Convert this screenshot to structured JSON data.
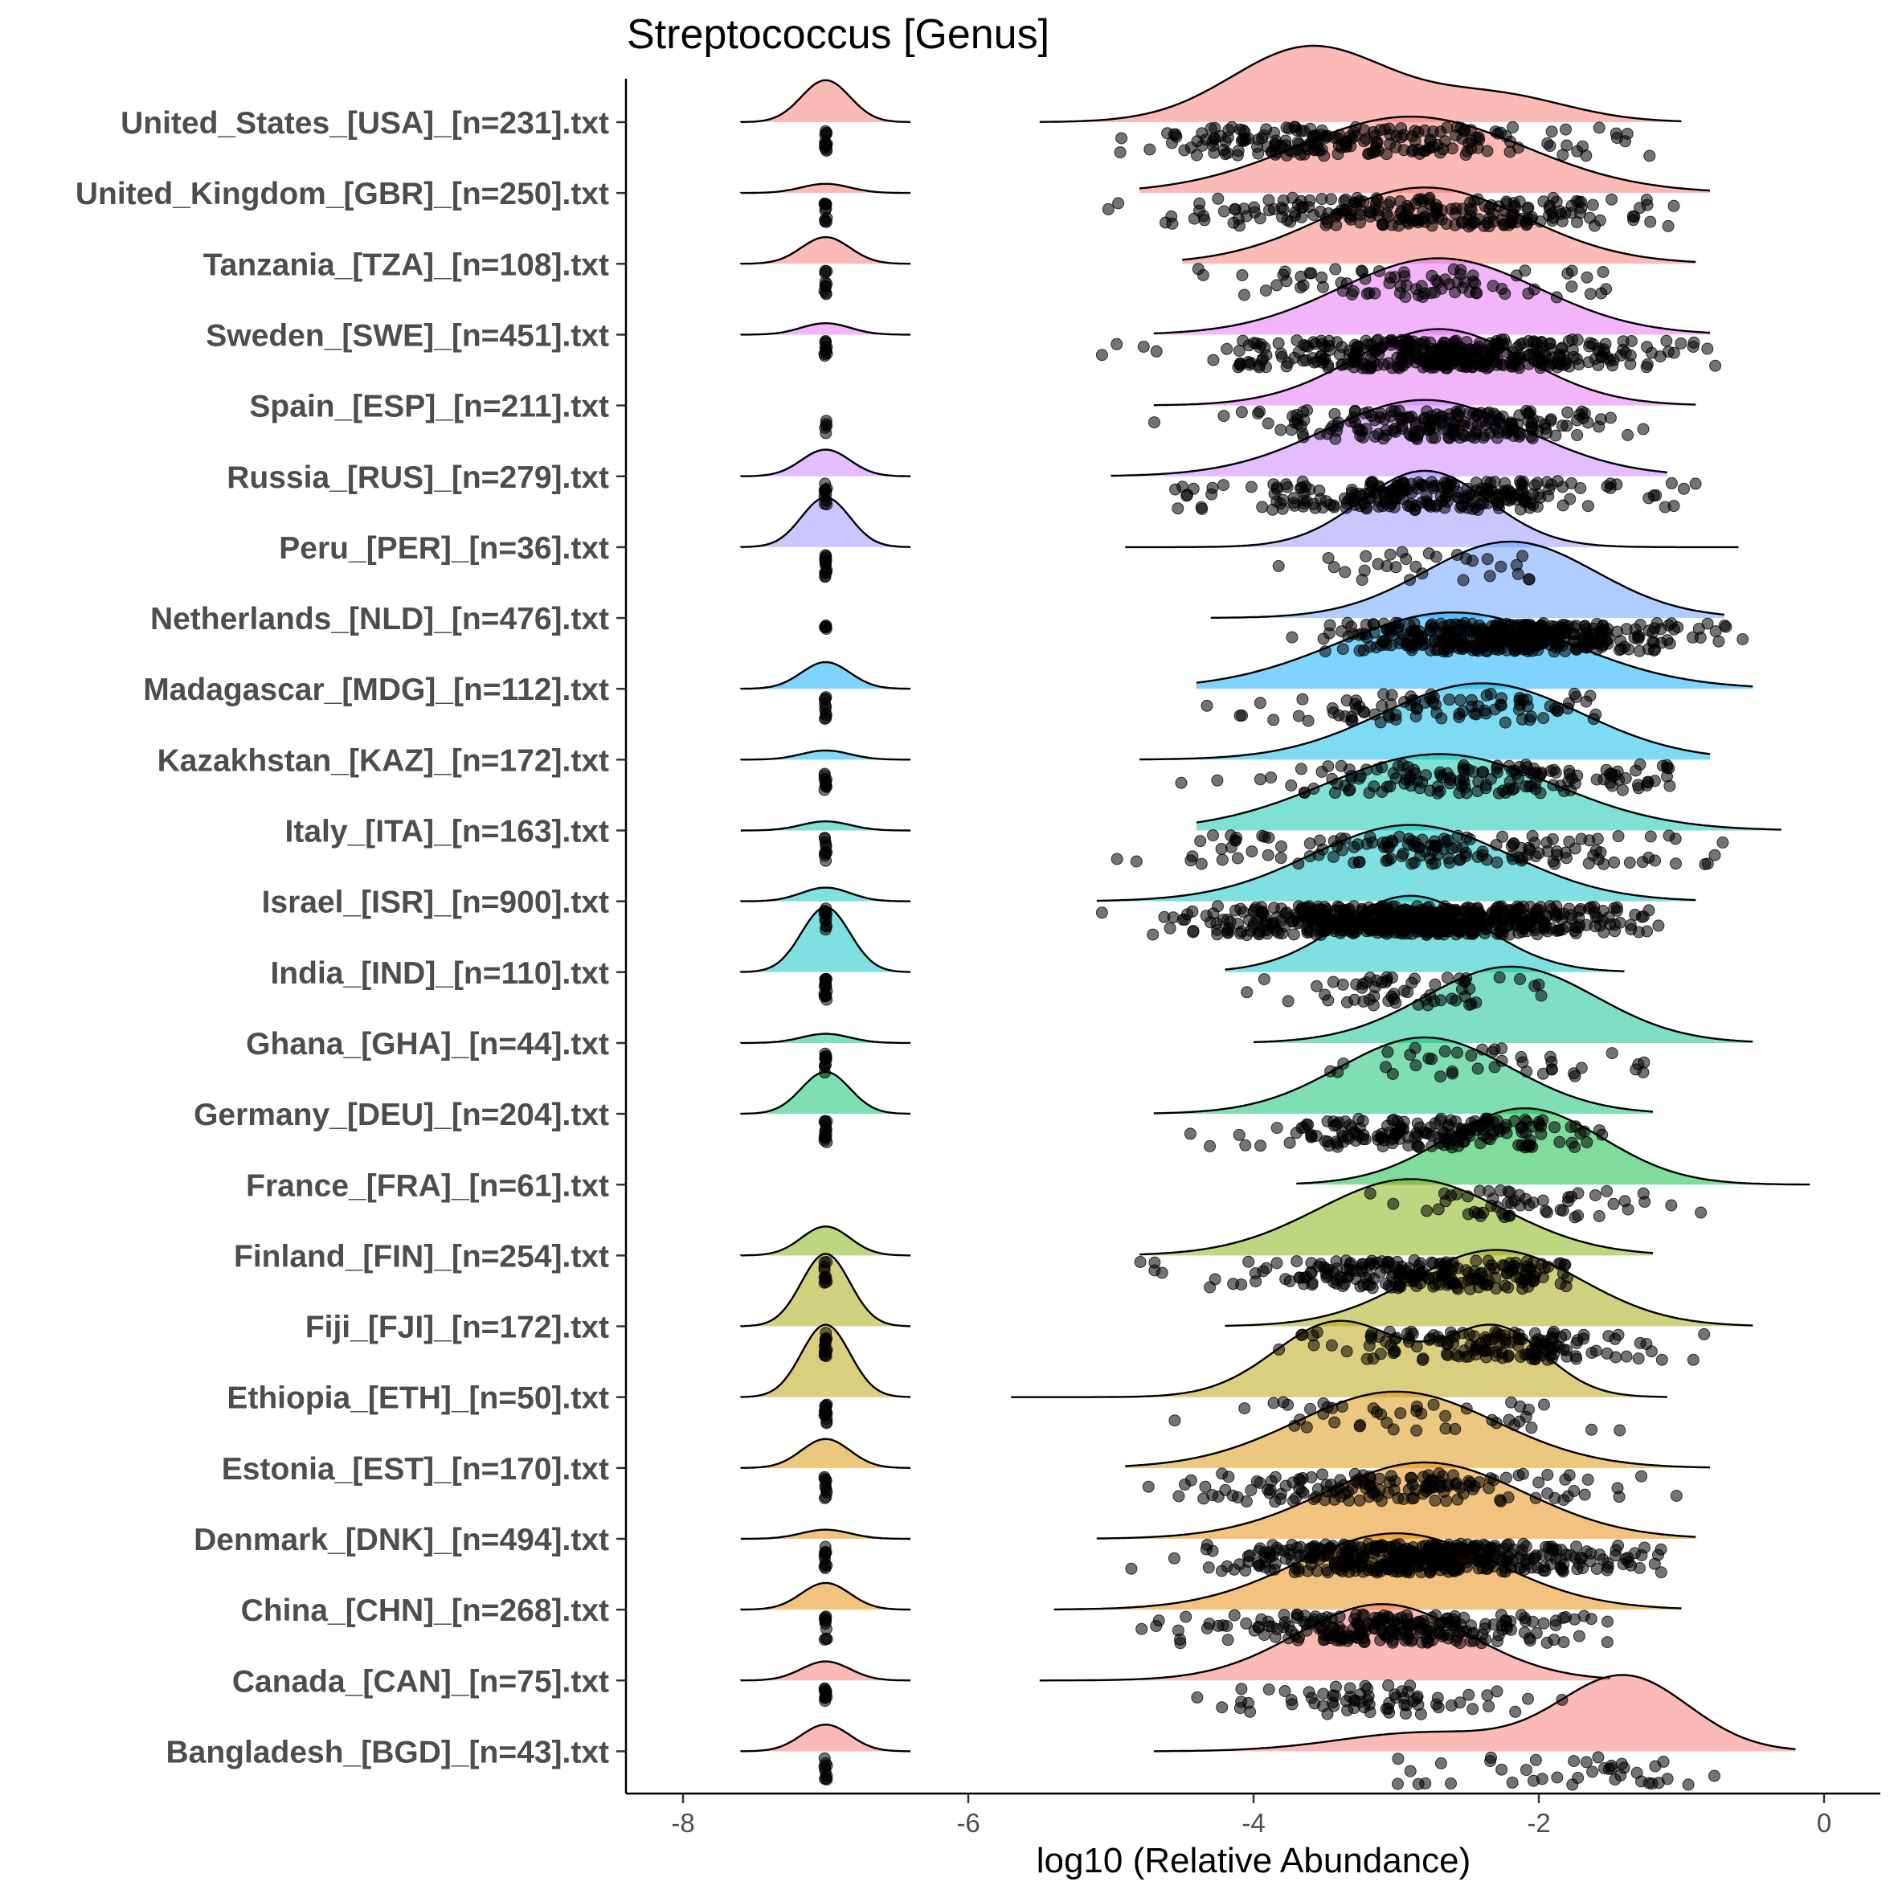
{
  "chart_data": {
    "type": "raincloud",
    "title": "Streptococcus [Genus]",
    "xlabel": "log10 (Relative Abundance)",
    "ylabel": "",
    "xlim": [
      -8.4,
      0.4
    ],
    "xticks": [
      -8,
      -6,
      -4,
      -2,
      0
    ],
    "zero_value": -7,
    "grid": false,
    "categories": [
      {
        "label": "United_States_[USA]_[n=231].txt",
        "color": "#F8766D",
        "zero_scale": 0.55,
        "zero_sd": 0.17,
        "nonzero": [
          [
            -3.6,
            0.55,
            1.0
          ],
          [
            -2.3,
            0.5,
            0.35
          ]
        ],
        "xmin": -5.5,
        "xmax": -1.0,
        "range": [
          -5.8,
          0.0
        ],
        "n_points": 200
      },
      {
        "label": "United_Kingdom_[GBR]_[n=250].txt",
        "color": "#F8766D",
        "zero_scale": 0.12,
        "zero_sd": 0.17,
        "nonzero": [
          [
            -2.9,
            0.8,
            1.0
          ]
        ],
        "xmin": -4.8,
        "xmax": -0.8,
        "range": [
          -5.4,
          -1.0
        ],
        "n_points": 220
      },
      {
        "label": "Tanzania_[TZA]_[n=108].txt",
        "color": "#F8766D",
        "zero_scale": 0.35,
        "zero_sd": 0.17,
        "nonzero": [
          [
            -2.8,
            0.7,
            1.0
          ]
        ],
        "xmin": -4.5,
        "xmax": -0.9,
        "range": [
          -4.6,
          -1.4
        ],
        "n_points": 80
      },
      {
        "label": "Sweden_[SWE]_[n=451].txt",
        "color": "#E76BF3",
        "zero_scale": 0.15,
        "zero_sd": 0.17,
        "nonzero": [
          [
            -2.7,
            0.7,
            1.0
          ]
        ],
        "xmin": -4.7,
        "xmax": -0.8,
        "range": [
          -5.6,
          -0.3
        ],
        "n_points": 380
      },
      {
        "label": "Spain_[ESP]_[n=211].txt",
        "color": "#E76BF3",
        "zero_scale": 0.0,
        "zero_sd": 0.17,
        "nonzero": [
          [
            -2.7,
            0.6,
            1.0
          ]
        ],
        "xmin": -4.7,
        "xmax": -0.9,
        "range": [
          -5.5,
          -1.2
        ],
        "n_points": 200
      },
      {
        "label": "Russia_[RUS]_[n=279].txt",
        "color": "#C77CFF",
        "zero_scale": 0.35,
        "zero_sd": 0.17,
        "nonzero": [
          [
            -2.8,
            0.7,
            1.0
          ]
        ],
        "xmin": -5.0,
        "xmax": -1.1,
        "range": [
          -5.0,
          -0.9
        ],
        "n_points": 240
      },
      {
        "label": "Peru_[PER]_[n=36].txt",
        "color": "#9590FF",
        "zero_scale": 0.65,
        "zero_sd": 0.17,
        "nonzero": [
          [
            -2.8,
            0.45,
            1.0
          ]
        ],
        "xmin": -4.9,
        "xmax": -0.6,
        "range": [
          -4.8,
          -0.9
        ],
        "n_points": 30
      },
      {
        "label": "Netherlands_[NLD]_[n=476].txt",
        "color": "#619CFF",
        "zero_scale": 0.0,
        "zero_sd": 0.17,
        "nonzero": [
          [
            -2.2,
            0.6,
            1.0
          ]
        ],
        "xmin": -4.3,
        "xmax": -0.7,
        "range": [
          -4.6,
          -0.5
        ],
        "n_points": 400
      },
      {
        "label": "Madagascar_[MDG]_[n=112].txt",
        "color": "#00A9FF",
        "zero_scale": 0.35,
        "zero_sd": 0.17,
        "nonzero": [
          [
            -2.6,
            0.8,
            1.0
          ]
        ],
        "xmin": -4.4,
        "xmax": -0.5,
        "range": [
          -5.7,
          -1.6
        ],
        "n_points": 90
      },
      {
        "label": "Kazakhstan_[KAZ]_[n=172].txt",
        "color": "#00B8E7",
        "zero_scale": 0.12,
        "zero_sd": 0.17,
        "nonzero": [
          [
            -2.4,
            0.7,
            1.0
          ]
        ],
        "xmin": -4.8,
        "xmax": -0.8,
        "range": [
          -4.8,
          -1.0
        ],
        "n_points": 150
      },
      {
        "label": "Italy_[ITA]_[n=163].txt",
        "color": "#00C1A9",
        "zero_scale": 0.12,
        "zero_sd": 0.17,
        "nonzero": [
          [
            -2.7,
            0.8,
            1.0
          ]
        ],
        "xmin": -4.4,
        "xmax": -0.3,
        "range": [
          -5.3,
          -0.6
        ],
        "n_points": 150
      },
      {
        "label": "Israel_[ISR]_[n=900].txt",
        "color": "#00BFC4",
        "zero_scale": 0.18,
        "zero_sd": 0.17,
        "nonzero": [
          [
            -2.9,
            0.7,
            1.0
          ]
        ],
        "xmin": -5.1,
        "xmax": -0.9,
        "range": [
          -5.3,
          -0.8
        ],
        "n_points": 600
      },
      {
        "label": "India_[IND]_[n=110].txt",
        "color": "#00BFC4",
        "zero_scale": 0.85,
        "zero_sd": 0.17,
        "nonzero": [
          [
            -2.9,
            0.5,
            1.0
          ]
        ],
        "xmin": -4.2,
        "xmax": -1.4,
        "range": [
          -4.1,
          -1.7
        ],
        "n_points": 60
      },
      {
        "label": "Ghana_[GHA]_[n=44].txt",
        "color": "#00C08B",
        "zero_scale": 0.12,
        "zero_sd": 0.17,
        "nonzero": [
          [
            -2.2,
            0.6,
            1.0
          ]
        ],
        "xmin": -4.0,
        "xmax": -0.5,
        "range": [
          -4.4,
          -1.2
        ],
        "n_points": 40
      },
      {
        "label": "Germany_[DEU]_[n=204].txt",
        "color": "#00BE67",
        "zero_scale": 0.55,
        "zero_sd": 0.17,
        "nonzero": [
          [
            -2.8,
            0.6,
            1.0
          ]
        ],
        "xmin": -4.7,
        "xmax": -1.2,
        "range": [
          -5.0,
          -1.5
        ],
        "n_points": 180
      },
      {
        "label": "France_[FRA]_[n=61].txt",
        "color": "#00BA38",
        "zero_scale": 0.0,
        "zero_sd": 0.17,
        "nonzero": [
          [
            -2.1,
            0.55,
            1.0
          ]
        ],
        "xmin": -3.7,
        "xmax": -0.1,
        "range": [
          -3.6,
          -0.7
        ],
        "n_points": 55
      },
      {
        "label": "Finland_[FIN]_[n=254].txt",
        "color": "#7CAE00",
        "zero_scale": 0.38,
        "zero_sd": 0.17,
        "nonzero": [
          [
            -2.9,
            0.65,
            1.0
          ]
        ],
        "xmin": -4.8,
        "xmax": -1.2,
        "range": [
          -4.8,
          -1.8
        ],
        "n_points": 220
      },
      {
        "label": "Fiji_[FJI]_[n=172].txt",
        "color": "#A3A500",
        "zero_scale": 0.95,
        "zero_sd": 0.17,
        "nonzero": [
          [
            -2.3,
            0.6,
            1.0
          ]
        ],
        "xmin": -4.2,
        "xmax": -0.5,
        "range": [
          -4.6,
          -0.5
        ],
        "n_points": 150
      },
      {
        "label": "Ethiopia_[ETH]_[n=50].txt",
        "color": "#B79F00",
        "zero_scale": 0.95,
        "zero_sd": 0.17,
        "nonzero": [
          [
            -3.4,
            0.45,
            1.0
          ],
          [
            -2.3,
            0.35,
            0.9
          ]
        ],
        "xmin": -5.7,
        "xmax": -1.1,
        "range": [
          -5.4,
          -1.3
        ],
        "n_points": 45
      },
      {
        "label": "Estonia_[EST]_[n=170].txt",
        "color": "#D89000",
        "zero_scale": 0.38,
        "zero_sd": 0.17,
        "nonzero": [
          [
            -3.0,
            0.7,
            1.0
          ]
        ],
        "xmin": -4.9,
        "xmax": -0.8,
        "range": [
          -5.3,
          -1.0
        ],
        "n_points": 150
      },
      {
        "label": "Denmark_[DNK]_[n=494].txt",
        "color": "#E58700",
        "zero_scale": 0.12,
        "zero_sd": 0.17,
        "nonzero": [
          [
            -2.8,
            0.7,
            1.0
          ]
        ],
        "xmin": -5.1,
        "xmax": -0.9,
        "range": [
          -5.5,
          -1.1
        ],
        "n_points": 420
      },
      {
        "label": "China_[CHN]_[n=268].txt",
        "color": "#E58700",
        "zero_scale": 0.35,
        "zero_sd": 0.17,
        "nonzero": [
          [
            -3.0,
            0.7,
            1.0
          ]
        ],
        "xmin": -5.4,
        "xmax": -1.0,
        "range": [
          -5.6,
          -0.8
        ],
        "n_points": 230
      },
      {
        "label": "Canada_[CAN]_[n=75].txt",
        "color": "#F8766D",
        "zero_scale": 0.25,
        "zero_sd": 0.17,
        "nonzero": [
          [
            -3.1,
            0.6,
            1.0
          ]
        ],
        "xmin": -5.5,
        "xmax": -1.5,
        "range": [
          -5.5,
          -1.1
        ],
        "n_points": 70
      },
      {
        "label": "Bangladesh_[BGD]_[n=43].txt",
        "color": "#F8766D",
        "zero_scale": 0.35,
        "zero_sd": 0.17,
        "nonzero": [
          [
            -1.4,
            0.45,
            1.0
          ],
          [
            -2.8,
            0.6,
            0.25
          ]
        ],
        "xmin": -4.7,
        "xmax": -0.2,
        "range": [
          -4.5,
          -0.7
        ],
        "n_points": 40
      }
    ]
  }
}
